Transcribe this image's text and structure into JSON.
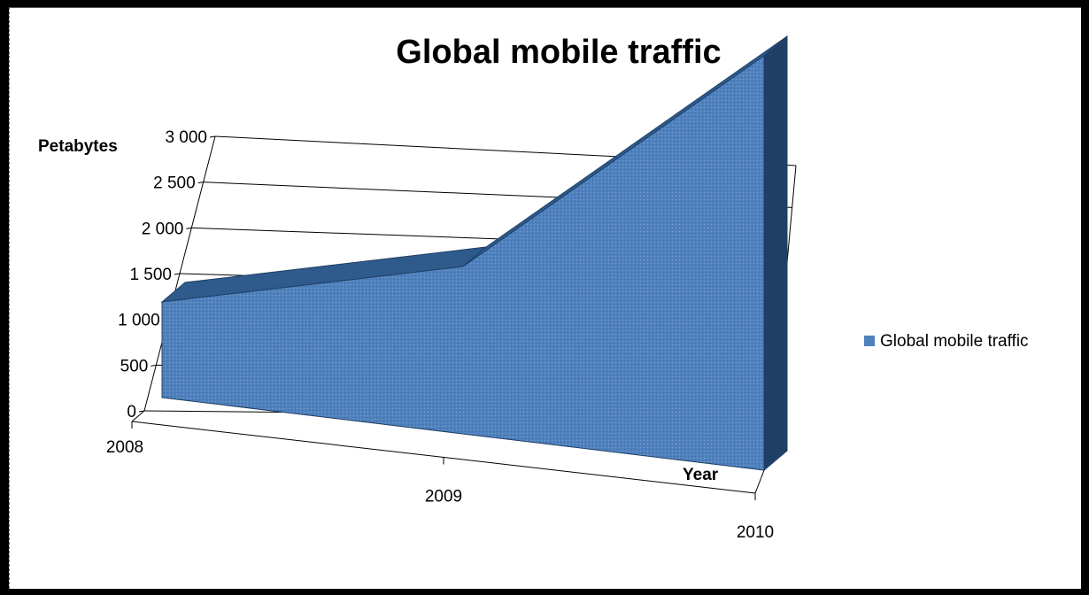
{
  "chart_data": {
    "type": "area",
    "title": "Global mobile traffic",
    "xlabel": "Year",
    "ylabel": "Petabytes",
    "categories": [
      "2008",
      "2009",
      "2010"
    ],
    "series": [
      {
        "name": "Global mobile traffic",
        "values": [
          600,
          1050,
          2600
        ]
      }
    ],
    "ylim": [
      0,
      3000
    ],
    "yticks": [
      0,
      500,
      1000,
      1500,
      2000,
      2500,
      3000
    ],
    "ytick_labels": [
      "0",
      "500",
      "1 000",
      "1 500",
      "2 000",
      "2 500",
      "3 000"
    ],
    "legend": "right",
    "grid": true,
    "three_d": true,
    "colors": {
      "area_front": "#4f81bd",
      "area_side": "#2f5a8c",
      "area_edge": "#1f3f66",
      "grid": "#000000"
    }
  }
}
